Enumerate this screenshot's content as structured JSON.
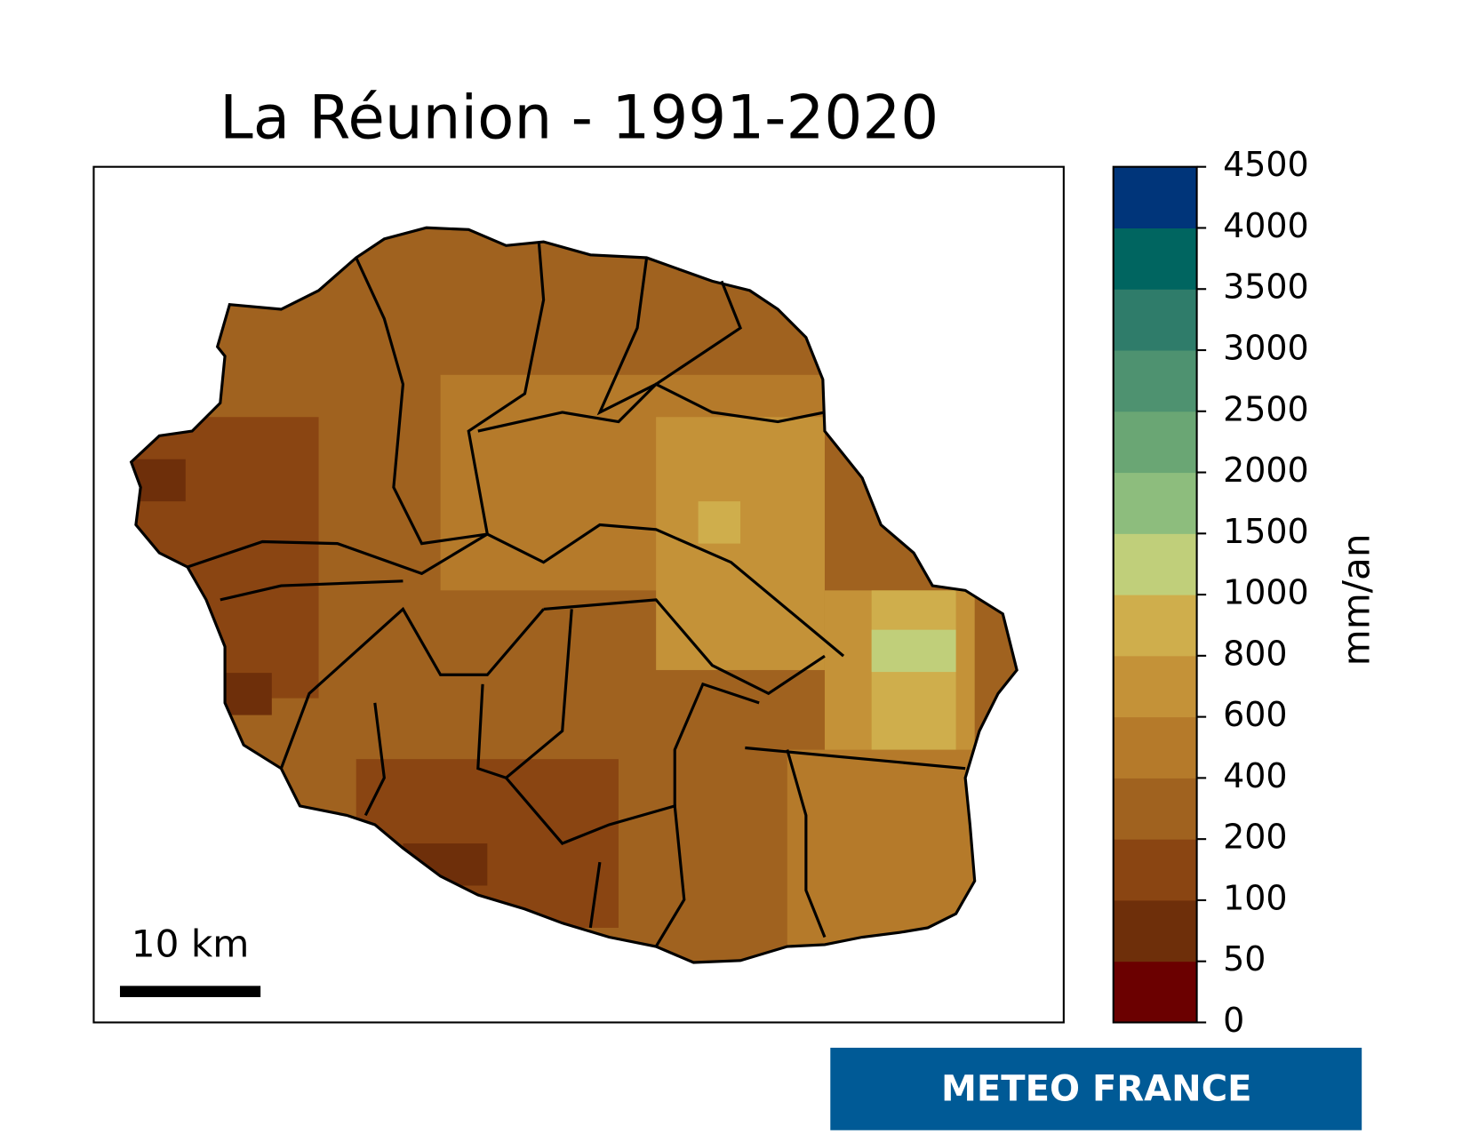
{
  "title": "La Réunion - 1991-2020",
  "colorbar": {
    "label": "mm/an",
    "ticks": [
      0,
      50,
      100,
      200,
      400,
      600,
      800,
      1000,
      1500,
      2000,
      2500,
      3000,
      3500,
      4000,
      4500
    ],
    "colors": [
      "#6b0000",
      "#6e2f0a",
      "#8a4512",
      "#a0621f",
      "#b57a2a",
      "#c49238",
      "#cfae4c",
      "#c0cf7a",
      "#8dbd7d",
      "#6aa674",
      "#4e9270",
      "#2f7c6a",
      "#006560",
      "#00357a"
    ]
  },
  "scale_bar": "10 km",
  "logo": "METEO FRANCE"
}
